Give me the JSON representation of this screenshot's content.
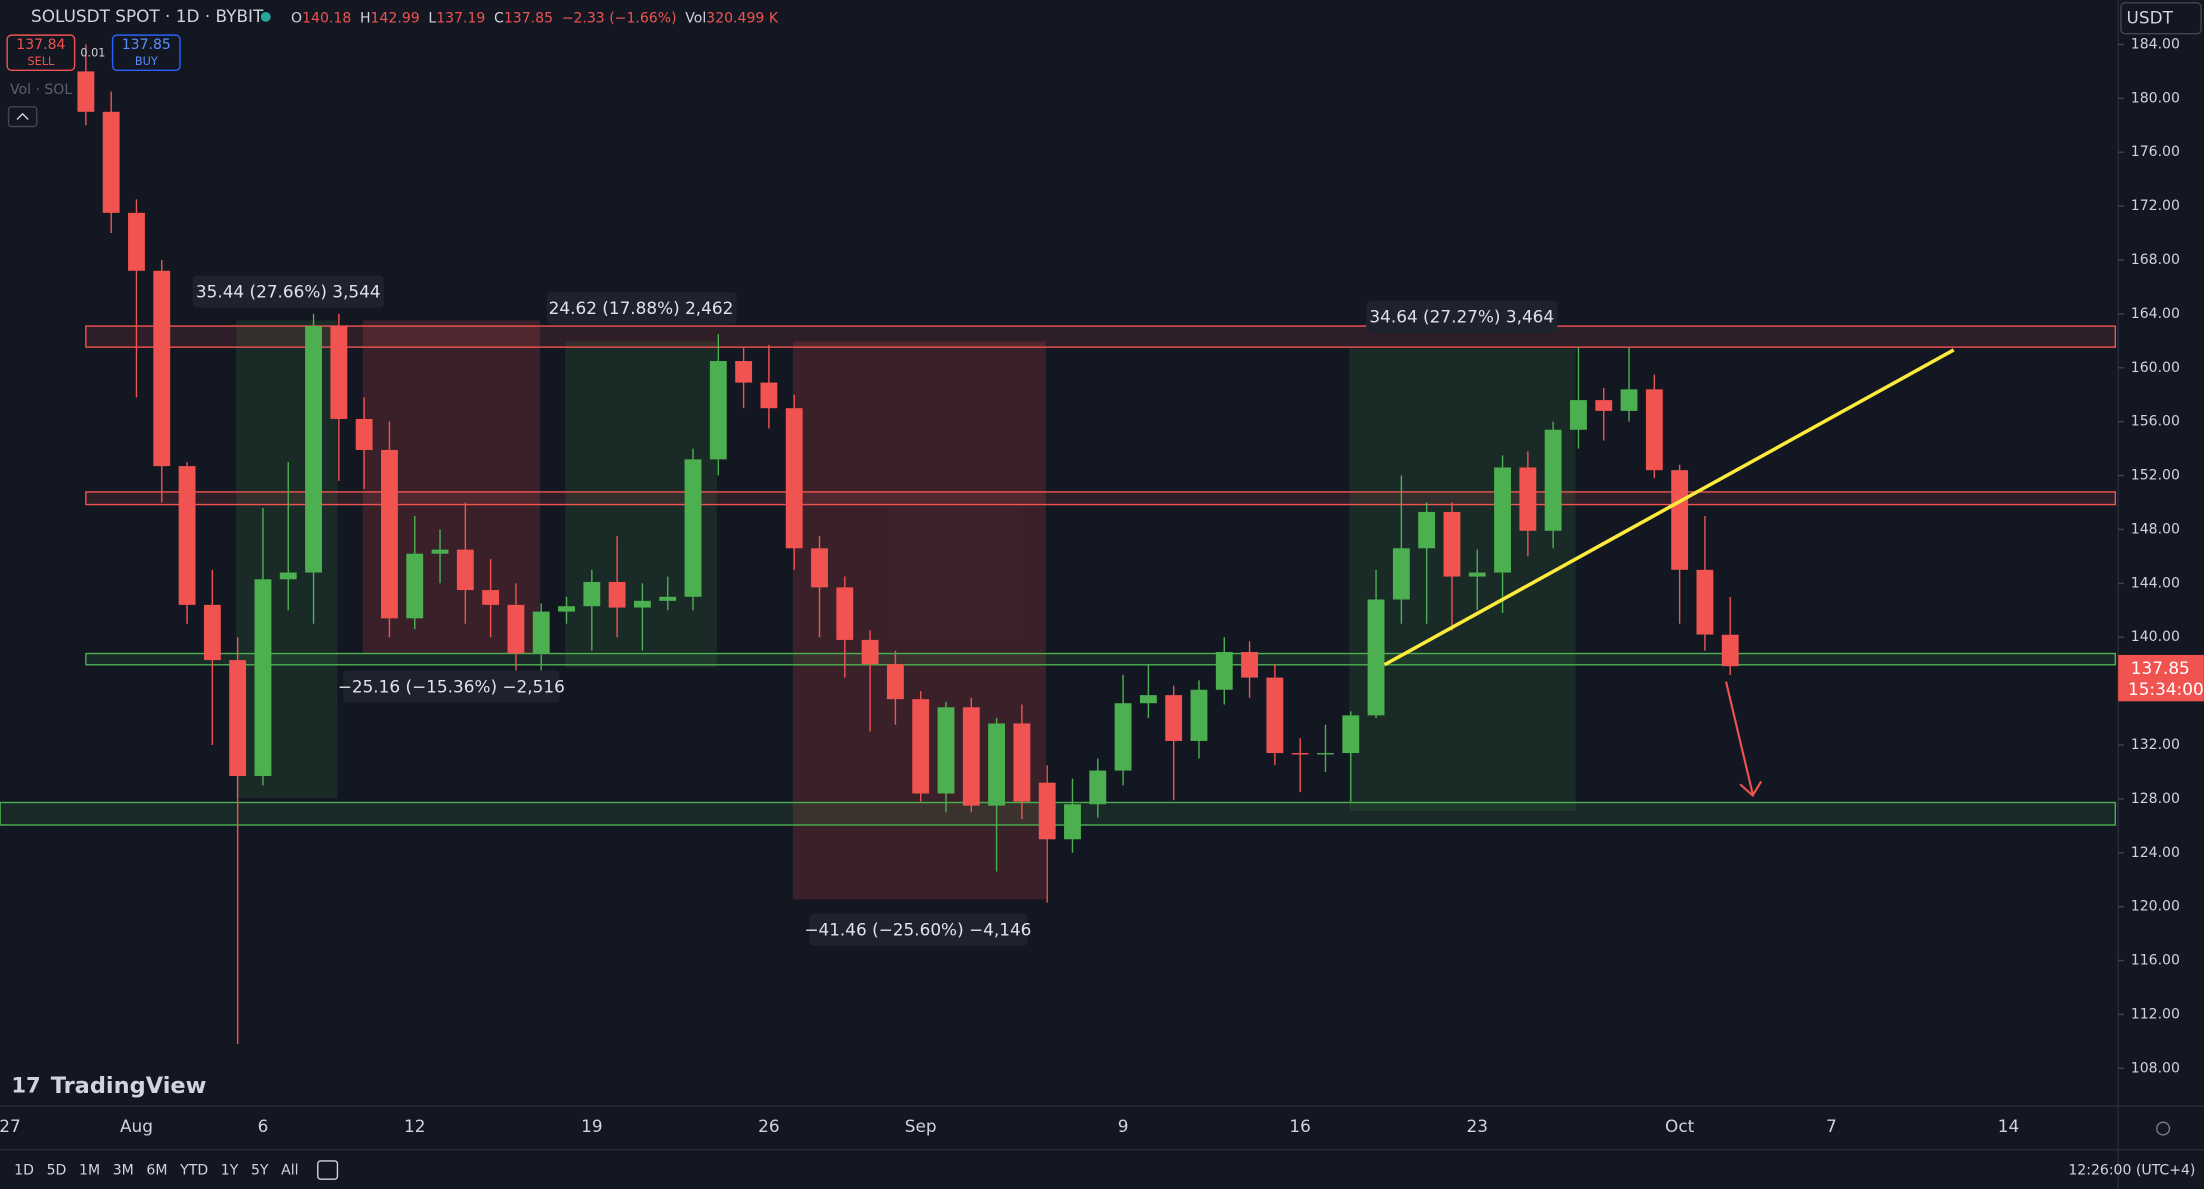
{
  "header": {
    "symbol": "SOLUSDT SPOT · 1D · BYBIT",
    "o_label": "O",
    "o": "140.18",
    "h_label": "H",
    "h": "142.99",
    "l_label": "L",
    "l": "137.19",
    "c_label": "C",
    "c": "137.85",
    "change": "−2.33 (−1.66%)",
    "vol_label": "Vol",
    "vol": "320.499 K"
  },
  "trade": {
    "sell_price": "137.84",
    "sell": "SELL",
    "spread": "0.01",
    "buy_price": "137.85",
    "buy": "BUY"
  },
  "indicator": "Vol · SOL",
  "currency": "USDT",
  "logo": "TradingView",
  "price_label": {
    "price": "137.85",
    "countdown": "15:34:00"
  },
  "measurements": [
    "35.44 (27.66%) 3,544",
    "24.62 (17.88%) 2,462",
    "34.64 (27.27%) 3,464",
    "−25.16 (−15.36%) −2,516",
    "−41.46 (−25.60%) −4,146"
  ],
  "toolbar": {
    "ranges": [
      "1D",
      "5D",
      "1M",
      "3M",
      "6M",
      "YTD",
      "1Y",
      "5Y",
      "All"
    ],
    "clock": "12:26:00 (UTC+4)"
  },
  "chart_data": {
    "type": "candlestick",
    "up_color": "#4caf50",
    "down_color": "#f05350",
    "categories": [
      "27",
      null,
      null,
      null,
      null,
      "Aug",
      null,
      null,
      null,
      null,
      "6",
      null,
      null,
      null,
      null,
      null,
      "12",
      null,
      null,
      null,
      null,
      null,
      null,
      "19",
      null,
      null,
      null,
      null,
      null,
      null,
      "26",
      null,
      null,
      null,
      null,
      null,
      "Sep",
      null,
      null,
      null,
      null,
      null,
      null,
      null,
      "9",
      null,
      null,
      null,
      null,
      null,
      null,
      "16",
      null,
      null,
      null,
      null,
      null,
      null,
      "23",
      null,
      null,
      null,
      null,
      null,
      null,
      null,
      "Oct",
      null,
      null,
      null,
      null,
      null,
      "7",
      null,
      null,
      null,
      null,
      null,
      null,
      "14",
      null,
      null,
      null
    ],
    "open": [
      null,
      null,
      null,
      182,
      179,
      171.5,
      167.2,
      152.7,
      142.4,
      138.3,
      129.7,
      144.3,
      144.8,
      163.1,
      156.2,
      153.9,
      141.4,
      146.2,
      146.5,
      143.5,
      142.4,
      138.8,
      141.9,
      142.3,
      144.1,
      142.2,
      142.7,
      143,
      153.2,
      160.5,
      158.9,
      157,
      146.6,
      143.7,
      139.8,
      138,
      135.4,
      128.4,
      134.8,
      127.5,
      133.6,
      129.2,
      125,
      127.6,
      130.1,
      135.1,
      135.7,
      132.3,
      136.1,
      138.9,
      137,
      131.4,
      131.3,
      131.4,
      134.2,
      142.8,
      146.6,
      149.3,
      144.5,
      144.8,
      152.6,
      147.9,
      155.4,
      157.6,
      156.8,
      158.4,
      152.4,
      145,
      140.18,
      null,
      null,
      null,
      null,
      null,
      null,
      null,
      null,
      null,
      null,
      null,
      null,
      null,
      null
    ],
    "high": [
      null,
      null,
      null,
      184,
      180.5,
      172.5,
      168,
      153,
      145,
      140,
      149.6,
      153,
      164,
      164,
      157.8,
      156,
      149,
      148,
      150,
      145.8,
      144,
      142.5,
      143,
      145,
      147.5,
      144,
      144.5,
      154,
      162.5,
      161.5,
      161.7,
      158,
      147.5,
      144.5,
      140.5,
      139,
      136,
      135.2,
      135.5,
      134,
      135,
      130.5,
      129.5,
      131,
      137.2,
      138,
      136.4,
      136.8,
      140,
      139.7,
      138,
      132.5,
      133.5,
      134.5,
      145,
      152,
      150,
      150,
      146.5,
      153.5,
      153.8,
      156,
      161.5,
      158.5,
      161.5,
      159.5,
      152.8,
      149,
      142.99,
      null,
      null,
      null,
      null,
      null,
      null,
      null,
      null,
      null,
      null,
      null,
      null,
      null,
      null
    ],
    "low": [
      null,
      null,
      null,
      178,
      170,
      157.8,
      150,
      141,
      132,
      109.8,
      129,
      142,
      141,
      151.6,
      151,
      140,
      140.6,
      144,
      141,
      140,
      137,
      136.5,
      141,
      139,
      140,
      139,
      142,
      142,
      152,
      157,
      155.5,
      145,
      140,
      137,
      133,
      133.5,
      127.8,
      127,
      127,
      122.6,
      126.5,
      120.3,
      124,
      126.6,
      129,
      134,
      127.9,
      131,
      135,
      135.5,
      130.5,
      128.5,
      130,
      127.8,
      134,
      141,
      141,
      140.5,
      142,
      141.8,
      146,
      146.6,
      154,
      154.6,
      156,
      151.8,
      141,
      139,
      137.19,
      null,
      null,
      null,
      null,
      null,
      null,
      null,
      null,
      null,
      null,
      null,
      null,
      null,
      null
    ],
    "close": [
      null,
      null,
      null,
      179,
      171.5,
      167.2,
      152.7,
      142.4,
      138.3,
      129.7,
      144.3,
      144.8,
      163.1,
      156.2,
      153.9,
      141.4,
      146.2,
      146.5,
      143.5,
      142.4,
      138.8,
      141.9,
      142.3,
      144.1,
      142.2,
      142.7,
      143,
      153.2,
      160.5,
      158.9,
      157,
      146.6,
      143.7,
      139.8,
      138,
      135.4,
      128.4,
      134.8,
      127.5,
      133.6,
      127.8,
      125,
      127.6,
      130.1,
      135.1,
      135.7,
      132.3,
      136.1,
      138.9,
      137,
      131.4,
      131.3,
      131.4,
      134.2,
      142.8,
      146.6,
      149.3,
      144.5,
      144.8,
      152.6,
      147.9,
      155.4,
      157.6,
      156.8,
      158.4,
      152.4,
      145,
      140.2,
      137.85,
      null,
      null,
      null,
      null,
      null,
      null,
      null,
      null,
      null,
      null,
      null,
      null,
      null,
      null
    ],
    "ylim": [
      105.3,
      187.3
    ],
    "yticks": [
      {
        "value": 108,
        "label": "108.00"
      },
      {
        "value": 112,
        "label": "112.00"
      },
      {
        "value": 116,
        "label": "116.00"
      },
      {
        "value": 120,
        "label": "120.00"
      },
      {
        "value": 124,
        "label": "124.00"
      },
      {
        "value": 128,
        "label": "128.00"
      },
      {
        "value": 132,
        "label": "132.00"
      },
      {
        "value": 136,
        "label": "136.00"
      },
      {
        "value": 140,
        "label": "140.00"
      },
      {
        "value": 144,
        "label": "144.00"
      },
      {
        "value": 148,
        "label": "148.00"
      },
      {
        "value": 152,
        "label": "152.00"
      },
      {
        "value": 156,
        "label": "156.00"
      },
      {
        "value": 160,
        "label": "160.00"
      },
      {
        "value": 164,
        "label": "164.00"
      },
      {
        "value": 168,
        "label": "168.00"
      },
      {
        "value": 172,
        "label": "172.00"
      },
      {
        "value": 176,
        "label": "176.00"
      },
      {
        "value": 180,
        "label": "180.00"
      },
      {
        "value": 184,
        "label": "184.00"
      }
    ],
    "grid": false
  }
}
